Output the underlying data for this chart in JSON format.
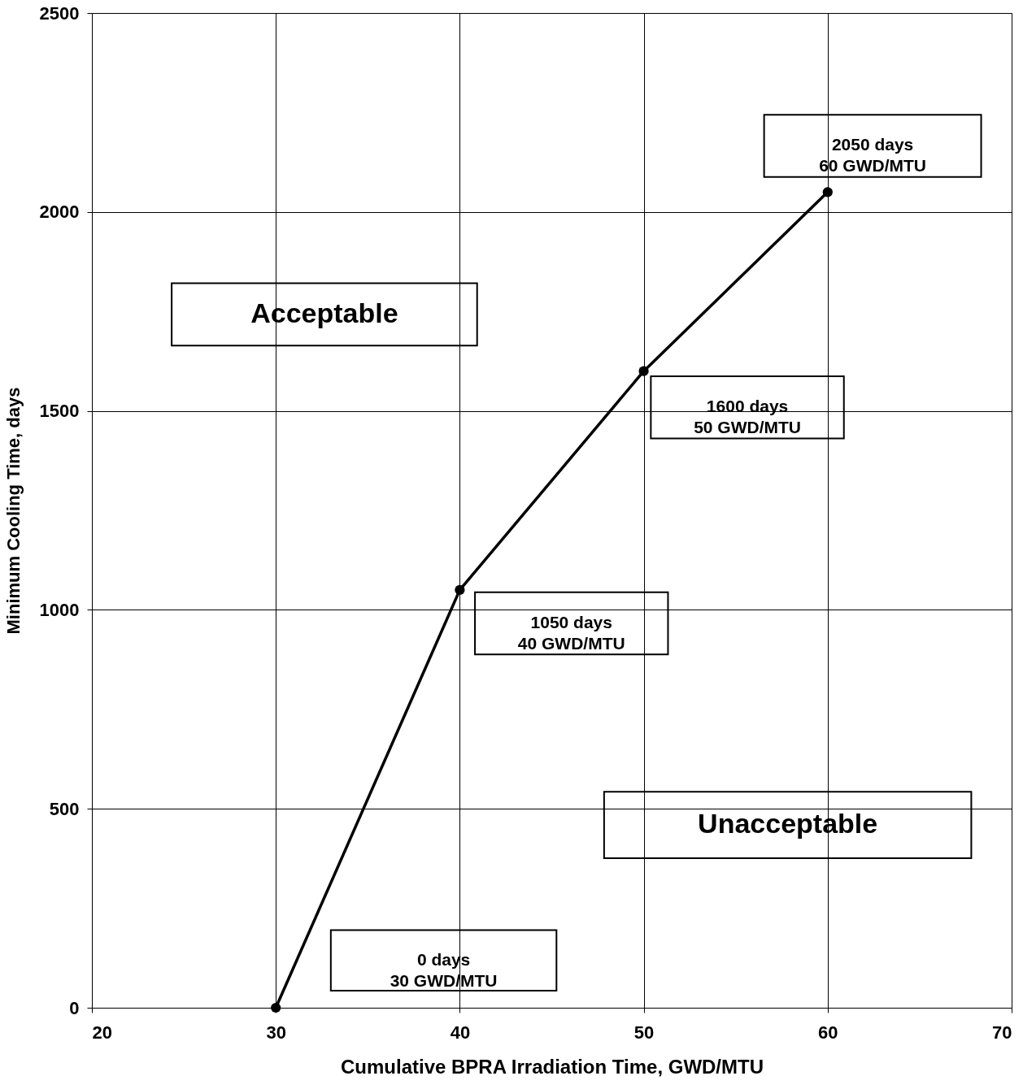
{
  "chart_data": {
    "type": "line",
    "xlabel": "Cumulative BPRA Irradiation Time, GWD/MTU",
    "ylabel": "Minimum Cooling Time, days",
    "x": [
      30,
      40,
      50,
      60
    ],
    "series": [
      {
        "color": "#000000",
        "values": [
          0,
          1050,
          1600,
          2050
        ]
      }
    ],
    "xlim": [
      20,
      70
    ],
    "xticks": [
      20,
      30,
      40,
      50,
      60,
      70
    ],
    "ylim": [
      0,
      2500
    ],
    "yticks": [
      0,
      500,
      1000,
      1500,
      2000,
      2500
    ],
    "grid": true,
    "marker": "circle",
    "line_style": "solid",
    "annotations": [
      "Acceptable",
      "Unacceptable",
      "0 days\n30 GWD/MTU",
      "1050 days\n40 GWD/MTU",
      "1600 days\n50 GWD/MTU",
      "2050 days\n60 GWD/MTU"
    ]
  }
}
